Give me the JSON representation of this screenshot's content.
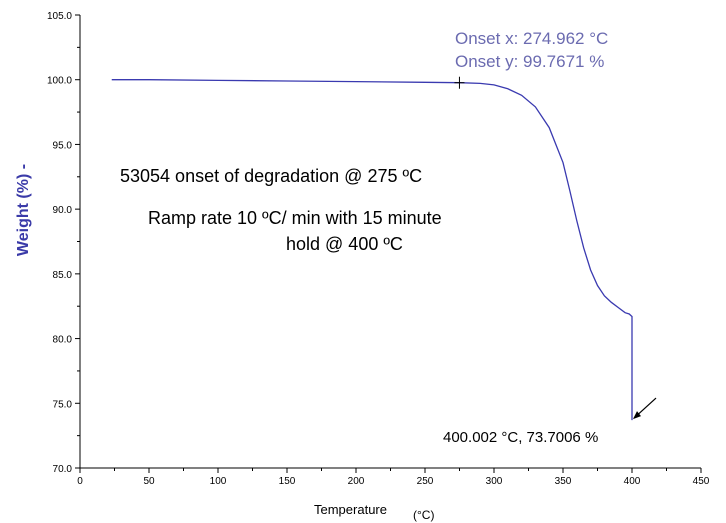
{
  "chart_data": {
    "type": "line",
    "xlabel": "Temperature",
    "xlabel_unit": "(°C)",
    "ylabel": "Weight (%) -",
    "xlim": [
      0,
      450
    ],
    "ylim": [
      70.0,
      105.0
    ],
    "x_ticks": [
      "0",
      "50",
      "100",
      "150",
      "200",
      "250",
      "300",
      "350",
      "400",
      "450"
    ],
    "y_ticks": [
      "70.0",
      "75.0",
      "80.0",
      "85.0",
      "90.0",
      "95.0",
      "100.0",
      "105.0"
    ],
    "grid": false,
    "line_color": "#3a3ab0",
    "series": [
      {
        "x": [
          23,
          50,
          100,
          150,
          200,
          250,
          275,
          290,
          300,
          310,
          320,
          330,
          340,
          350,
          355,
          360,
          365,
          370,
          375,
          380,
          385,
          390,
          395,
          398,
          400,
          400,
          400
        ],
        "y": [
          100.0,
          100.0,
          99.95,
          99.9,
          99.85,
          99.8,
          99.77,
          99.72,
          99.6,
          99.3,
          98.8,
          97.9,
          96.3,
          93.6,
          91.4,
          89.1,
          87.0,
          85.3,
          84.1,
          83.3,
          82.8,
          82.4,
          82.0,
          81.9,
          81.7,
          76.0,
          73.7
        ]
      }
    ],
    "annotations": {
      "onset_x": "Onset x: 274.962 °C",
      "onset_y": "Onset y: 99.7671 %",
      "sample_line": "53054 onset of degradation @ 275 ºC",
      "ramp_line1": "Ramp rate 10 ºC/ min with 15 minute",
      "ramp_line2": "hold @ 400 ºC",
      "end_point": "400.002 °C, 73.7006 %"
    },
    "onset_point": {
      "x": 274.962,
      "y": 99.7671
    },
    "end_point": {
      "x": 400.002,
      "y": 73.7006
    }
  }
}
